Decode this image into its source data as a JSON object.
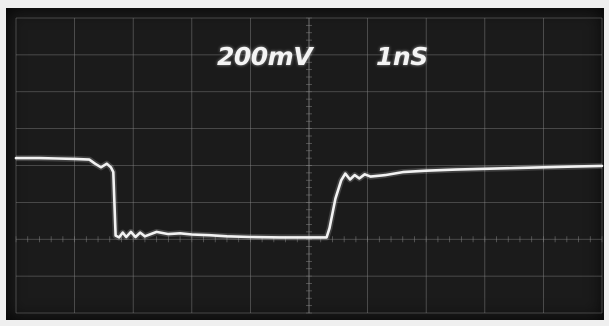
{
  "labels": {
    "volts_per_div": "200mV",
    "time_per_div": "1nS"
  },
  "colors": {
    "screen": "#1b1b1b",
    "graticule": "#8a8a8a",
    "trace": "#f2f2f2",
    "bezel": "#efefef"
  },
  "chart_data": {
    "type": "line",
    "title": "",
    "xlabel": "",
    "ylabel": "",
    "xlim": [
      0,
      10
    ],
    "ylim": [
      -3.5,
      4.5
    ],
    "grid": true,
    "series": [
      {
        "values": [
          [
            0.0,
            0.7
          ],
          [
            0.4,
            0.7
          ],
          [
            0.7,
            0.69
          ],
          [
            1.0,
            0.68
          ],
          [
            1.25,
            0.66
          ],
          [
            1.35,
            0.55
          ],
          [
            1.45,
            0.45
          ],
          [
            1.55,
            0.55
          ],
          [
            1.62,
            0.45
          ],
          [
            1.66,
            0.32
          ],
          [
            1.7,
            -1.4
          ],
          [
            1.76,
            -1.45
          ],
          [
            1.82,
            -1.32
          ],
          [
            1.88,
            -1.44
          ],
          [
            1.96,
            -1.3
          ],
          [
            2.04,
            -1.44
          ],
          [
            2.12,
            -1.32
          ],
          [
            2.2,
            -1.42
          ],
          [
            2.4,
            -1.3
          ],
          [
            2.6,
            -1.36
          ],
          [
            2.8,
            -1.34
          ],
          [
            3.0,
            -1.37
          ],
          [
            3.3,
            -1.39
          ],
          [
            3.6,
            -1.42
          ],
          [
            4.0,
            -1.44
          ],
          [
            4.5,
            -1.45
          ],
          [
            5.0,
            -1.45
          ],
          [
            5.3,
            -1.45
          ],
          [
            5.35,
            -1.2
          ],
          [
            5.45,
            -0.4
          ],
          [
            5.55,
            0.1
          ],
          [
            5.62,
            0.28
          ],
          [
            5.7,
            0.12
          ],
          [
            5.78,
            0.24
          ],
          [
            5.86,
            0.15
          ],
          [
            5.95,
            0.26
          ],
          [
            6.05,
            0.2
          ],
          [
            6.3,
            0.24
          ],
          [
            6.6,
            0.32
          ],
          [
            7.0,
            0.36
          ],
          [
            7.5,
            0.39
          ],
          [
            8.0,
            0.41
          ],
          [
            8.5,
            0.43
          ],
          [
            9.0,
            0.45
          ],
          [
            9.5,
            0.47
          ],
          [
            10.0,
            0.49
          ]
        ]
      }
    ]
  }
}
